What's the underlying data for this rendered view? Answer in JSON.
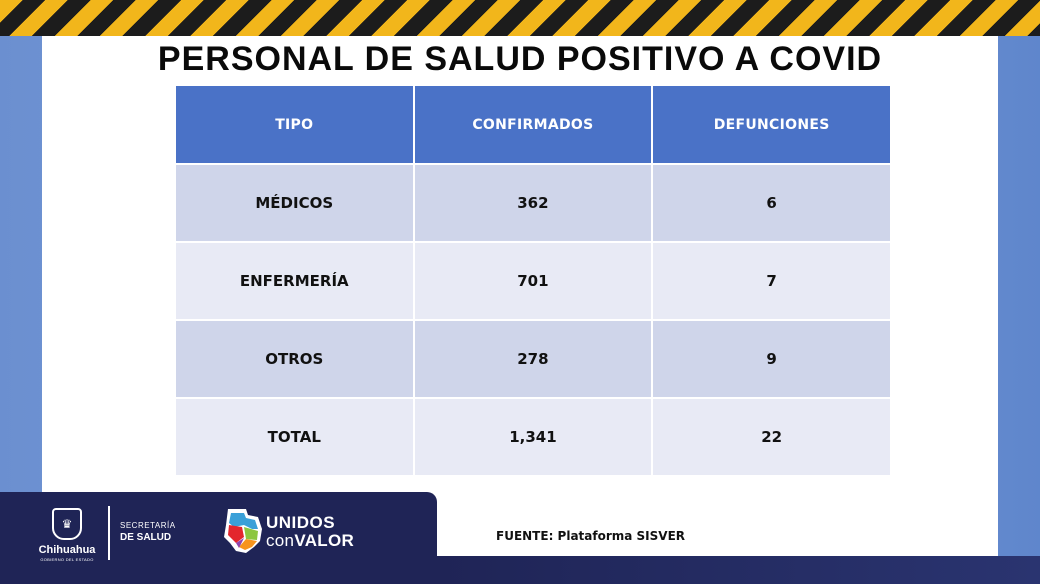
{
  "title": "PERSONAL DE SALUD POSITIVO A COVID",
  "table": {
    "headers": [
      "TIPO",
      "CONFIRMADOS",
      "DEFUNCIONES"
    ],
    "rows": [
      [
        "MÉDICOS",
        "362",
        "6"
      ],
      [
        "ENFERMERÍA",
        "701",
        "7"
      ],
      [
        "OTROS",
        "278",
        "9"
      ],
      [
        "TOTAL",
        "1,341",
        "22"
      ]
    ]
  },
  "footer": {
    "state_name": "Chihuahua",
    "state_subtitle": "GOBIERNO DEL ESTADO",
    "secretaria_line1": "SECRETARÍA",
    "secretaria_line2": "DE SALUD",
    "slogan_line1": "UNIDOS",
    "slogan_con": "con",
    "slogan_valor": "VALOR",
    "source": "FUENTE: Plataforma SISVER"
  },
  "colors": {
    "header_blue": "#4a72c7",
    "row_odd": "#cfd5ea",
    "row_even": "#e8eaf5",
    "footer_navy": "#1f2456",
    "hazard_yellow": "#f2b61b"
  },
  "icons": [
    "hazard-stripe",
    "state-shield-icon",
    "state-map-icon"
  ]
}
